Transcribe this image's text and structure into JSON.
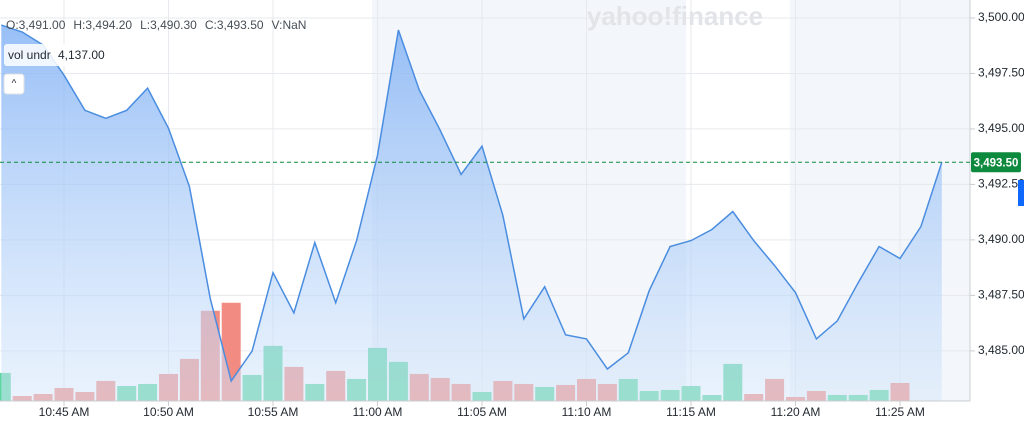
{
  "chart_data": {
    "type": "area",
    "watermark": "yahoo!finance",
    "legend": [
      "O:3,491.00",
      "H:3,494.20",
      "L:3,490.30",
      "C:3,493.50",
      "V:NaN"
    ],
    "collapse_button": "^",
    "categories": [
      null,
      null,
      null,
      "10:45 AM",
      null,
      null,
      null,
      null,
      "10:50 AM",
      null,
      null,
      null,
      null,
      "10:55 AM",
      null,
      null,
      null,
      null,
      "11:00 AM",
      null,
      null,
      null,
      null,
      "11:05 AM",
      null,
      null,
      null,
      null,
      "11:10 AM",
      null,
      null,
      null,
      null,
      "11:15 AM",
      null,
      null,
      null,
      null,
      "11:20 AM",
      null,
      null,
      null,
      null,
      "11:25 AM",
      null,
      null
    ],
    "series": [
      {
        "name": "price",
        "color": "#4a8de0",
        "values": [
          3499.68,
          3499.37,
          3498.78,
          3497.42,
          3495.84,
          3495.48,
          3495.84,
          3496.84,
          3495.03,
          3492.41,
          3487.35,
          3483.64,
          3484.99,
          3488.52,
          3486.71,
          3489.88,
          3487.17,
          3489.97,
          3493.81,
          3499.46,
          3496.75,
          3494.94,
          3492.95,
          3494.22,
          3491.1,
          3486.44,
          3487.89,
          3485.72,
          3485.54,
          3484.18,
          3484.91,
          3487.71,
          3489.7,
          3489.97,
          3490.47,
          3491.28,
          3489.97,
          3488.84,
          3487.62,
          3485.54,
          3486.35,
          3488.07,
          3489.7,
          3489.16,
          3490.6,
          3493.5
        ]
      }
    ],
    "volume": {
      "name": "vol undr",
      "value_label": "4,137.00",
      "vlim": [
        0,
        400
      ],
      "values": [
        28,
        5,
        7,
        13,
        9,
        20,
        15,
        17,
        27,
        42,
        90,
        98,
        26,
        55,
        34,
        17,
        30,
        22,
        53,
        39,
        27,
        23,
        17,
        9,
        20,
        17,
        14,
        16,
        22,
        17,
        22,
        10,
        11,
        15,
        6,
        37,
        7,
        22,
        4,
        10,
        6,
        6,
        11,
        18,
        null,
        null
      ],
      "colors": [
        "#5cd6a0",
        "#f28b82",
        "#f28b82",
        "#f28b82",
        "#f28b82",
        "#f28b82",
        "#5cd6a0",
        "#5cd6a0",
        "#f28b82",
        "#f28b82",
        "#f28b82",
        "#f28b82",
        "#5cd6a0",
        "#5cd6a0",
        "#f28b82",
        "#5cd6a0",
        "#f28b82",
        "#5cd6a0",
        "#5cd6a0",
        "#5cd6a0",
        "#f28b82",
        "#f28b82",
        "#f28b82",
        "#5cd6a0",
        "#f28b82",
        "#f28b82",
        "#5cd6a0",
        "#f28b82",
        "#f28b82",
        "#f28b82",
        "#5cd6a0",
        "#5cd6a0",
        "#5cd6a0",
        "#5cd6a0",
        "#5cd6a0",
        "#5cd6a0",
        "#f28b82",
        "#f28b82",
        "#f28b82",
        "#f28b82",
        "#5cd6a0",
        "#5cd6a0",
        "#5cd6a0",
        "#f28b82",
        null,
        null
      ]
    },
    "last_price": {
      "value": 3493.5,
      "label": "3,493.50",
      "color": "#0e8a3e"
    },
    "ylim": [
      3482.74,
      3500.81
    ],
    "yticks": [
      {
        "value": 3485,
        "label": "3,485.00"
      },
      {
        "value": 3487.5,
        "label": "3,487.50"
      },
      {
        "value": 3490,
        "label": "3,490.00"
      },
      {
        "value": 3492.5,
        "label": "3,492.50"
      },
      {
        "value": 3495,
        "label": "3,495.00"
      },
      {
        "value": 3497.5,
        "label": "3,497.50"
      },
      {
        "value": 3500,
        "label": "3,500.00"
      }
    ],
    "grid": true
  }
}
